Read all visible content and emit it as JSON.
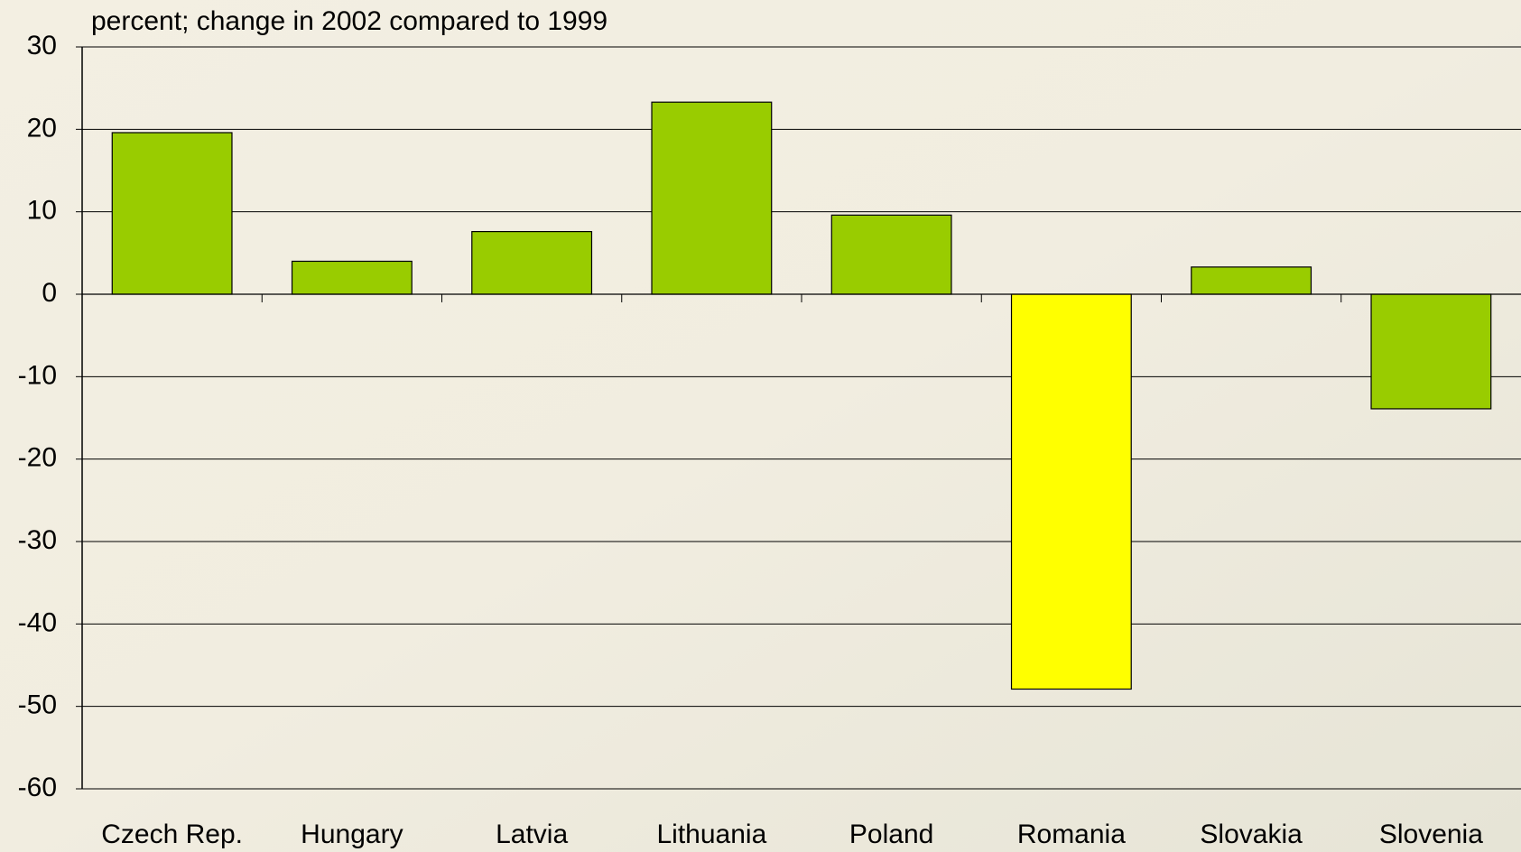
{
  "chart_data": {
    "type": "bar",
    "title": "percent; change in 2002 compared to 1999",
    "categories": [
      "Czech Rep.",
      "Hungary",
      "Latvia",
      "Lithuania",
      "Poland",
      "Romania",
      "Slovakia",
      "Slovenia"
    ],
    "values": [
      19.6,
      4.0,
      7.6,
      23.3,
      9.6,
      -47.9,
      3.3,
      -13.9
    ],
    "colors": [
      "#99cc00",
      "#99cc00",
      "#99cc00",
      "#99cc00",
      "#99cc00",
      "#ffff00",
      "#99cc00",
      "#99cc00"
    ],
    "ylim": [
      -60,
      30
    ],
    "yticks": [
      -60,
      -50,
      -40,
      -30,
      -20,
      -10,
      0,
      10,
      20,
      30
    ],
    "grid": true
  }
}
